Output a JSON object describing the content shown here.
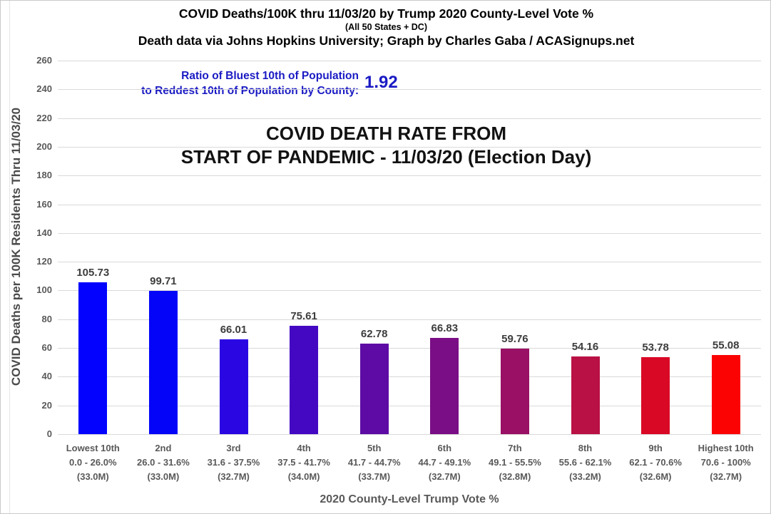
{
  "header": {
    "title_line1": "COVID Deaths/100K thru 11/03/20 by Trump 2020 County-Level Vote %",
    "title_line2": "(All 50 States + DC)",
    "title_line3": "Death data via Johns Hopkins University; Graph by Charles Gaba / ACASignups.net"
  },
  "ratio_callout": {
    "line1": "Ratio of Bluest 10th of Population",
    "line2": "to Reddest 10th of Population by County:",
    "value": "1.92",
    "color": "#1a1ac4"
  },
  "annotation": {
    "line1": "COVID DEATH RATE FROM",
    "line2": "START OF PANDEMIC - 11/03/20 (Election Day)"
  },
  "chart_data": {
    "type": "bar",
    "title": "COVID DEATH RATE FROM START OF PANDEMIC - 11/03/20 (Election Day)",
    "xlabel": "2020 County-Level Trump Vote %",
    "ylabel": "COVID Deaths per 100K Residents Thru 11/03/20",
    "ylim": [
      0,
      260
    ],
    "ytick_step": 20,
    "grid": true,
    "legend": false,
    "categories": [
      [
        "Lowest 10th",
        "0.0 - 26.0%",
        "(33.0M)"
      ],
      [
        "2nd",
        "26.0 - 31.6%",
        "(33.0M)"
      ],
      [
        "3rd",
        "31.6 - 37.5%",
        "(32.7M)"
      ],
      [
        "4th",
        "37.5 - 41.7%",
        "(34.0M)"
      ],
      [
        "5th",
        "41.7 - 44.7%",
        "(33.7M)"
      ],
      [
        "6th",
        "44.7 - 49.1%",
        "(32.7M)"
      ],
      [
        "7th",
        "49.1 - 55.5%",
        "(32.8M)"
      ],
      [
        "8th",
        "55.6 - 62.1%",
        "(33.2M)"
      ],
      [
        "9th",
        "62.1 - 70.6%",
        "(32.6M)"
      ],
      [
        "Highest 10th",
        "70.6 - 100%",
        "(32.7M)"
      ]
    ],
    "values": [
      105.73,
      99.71,
      66.01,
      75.61,
      62.78,
      66.83,
      59.76,
      54.16,
      53.78,
      55.08
    ],
    "bar_colors": [
      "#0202fe",
      "#0404f9",
      "#2a06e2",
      "#4408c3",
      "#5d0ba4",
      "#7a0e86",
      "#991065",
      "#b91145",
      "#d90825",
      "#fb0303"
    ],
    "value_label_color": "#3d3d3d",
    "axis_text_color": "#595959",
    "gridline_color": "#d9d9d9"
  }
}
